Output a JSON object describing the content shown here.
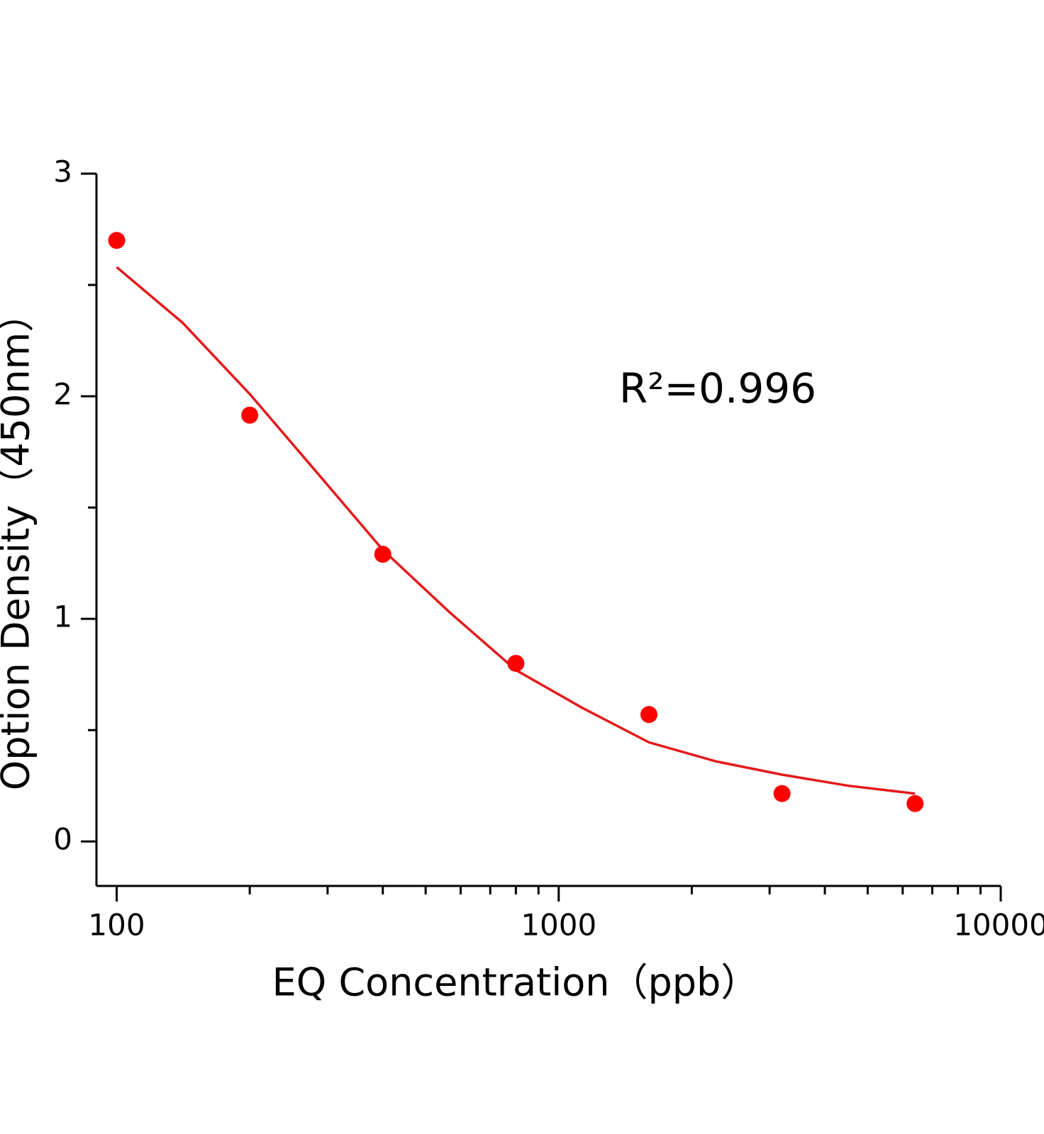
{
  "chart_data": {
    "type": "scatter",
    "x_label": "EQ Concentration（ppb）",
    "y_label": "Option Density（450nm）",
    "annotation": "R²=0.996",
    "xscale": "log",
    "xlim": [
      90,
      10000
    ],
    "ylim": [
      -0.2,
      3
    ],
    "xticks": [
      100,
      1000,
      10000
    ],
    "xminorticks": [
      200,
      300,
      400,
      500,
      600,
      700,
      800,
      900,
      2000,
      3000,
      4000,
      5000,
      6000,
      7000,
      8000,
      9000
    ],
    "yticks": [
      0,
      1,
      2,
      3
    ],
    "yminorticks": [
      0.5,
      1.5,
      2.5
    ],
    "series": [
      {
        "color": "#ff0000",
        "x": [
          100,
          200,
          400,
          800,
          1600,
          3200,
          6400
        ],
        "values": [
          2.7,
          1.915,
          1.29,
          0.8,
          0.57,
          0.215,
          0.17
        ]
      }
    ],
    "fit": {
      "color": "#e31a1c",
      "x": [
        100,
        141,
        200,
        283,
        400,
        566,
        800,
        1131,
        1600,
        2263,
        3200,
        4525,
        6400
      ],
      "values": [
        2.58,
        2.33,
        2.01,
        1.66,
        1.31,
        1.03,
        0.77,
        0.6,
        0.445,
        0.36,
        0.3,
        0.25,
        0.215
      ]
    }
  }
}
